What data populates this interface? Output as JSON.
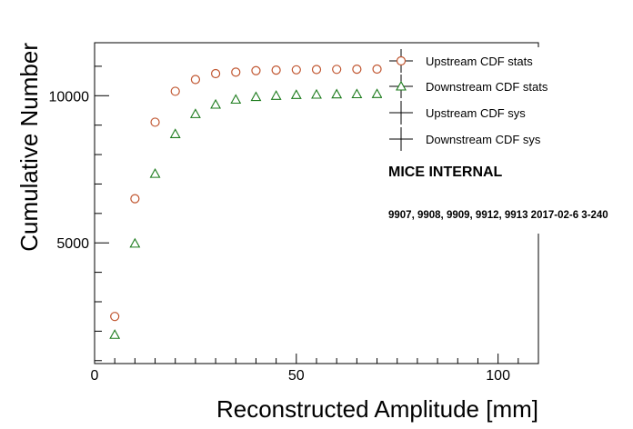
{
  "chart_data": {
    "type": "scatter",
    "title": "",
    "xlabel": "Reconstructed Amplitude [mm]",
    "ylabel": "Cumulative Number",
    "xlim": [
      0,
      110
    ],
    "ylim": [
      900,
      11800
    ],
    "xticks": [
      0,
      50,
      100
    ],
    "yticks": [
      5000,
      10000
    ],
    "grid": false,
    "legend_placement": "top-right",
    "series": [
      {
        "name": "Upstream CDF stats",
        "marker": "circle-open",
        "color": "#c0552f",
        "x": [
          5,
          10,
          15,
          20,
          25,
          30,
          35,
          40,
          45,
          50,
          55,
          60,
          65,
          70,
          75
        ],
        "y": [
          2500,
          6500,
          9100,
          10150,
          10550,
          10750,
          10800,
          10850,
          10870,
          10880,
          10890,
          10895,
          10900,
          10905,
          10910
        ]
      },
      {
        "name": "Downstream CDF stats",
        "marker": "triangle-open",
        "color": "#1a7a1a",
        "x": [
          5,
          10,
          15,
          20,
          25,
          30,
          35,
          40,
          45,
          50,
          55,
          60,
          65,
          70,
          75
        ],
        "y": [
          1880,
          4980,
          7350,
          8700,
          9380,
          9700,
          9870,
          9960,
          10000,
          10030,
          10040,
          10050,
          10055,
          10060,
          10065
        ]
      },
      {
        "name": "Upstream CDF sys",
        "marker": "cross",
        "color": "#000000",
        "x": [],
        "y": []
      },
      {
        "name": "Downstream CDF sys",
        "marker": "cross",
        "color": "#000000",
        "x": [],
        "y": []
      }
    ],
    "annotations": {
      "label": "MICE INTERNAL",
      "runs": "9907, 9908, 9909, 9912, 9913 2017-02-6 3-240"
    }
  }
}
